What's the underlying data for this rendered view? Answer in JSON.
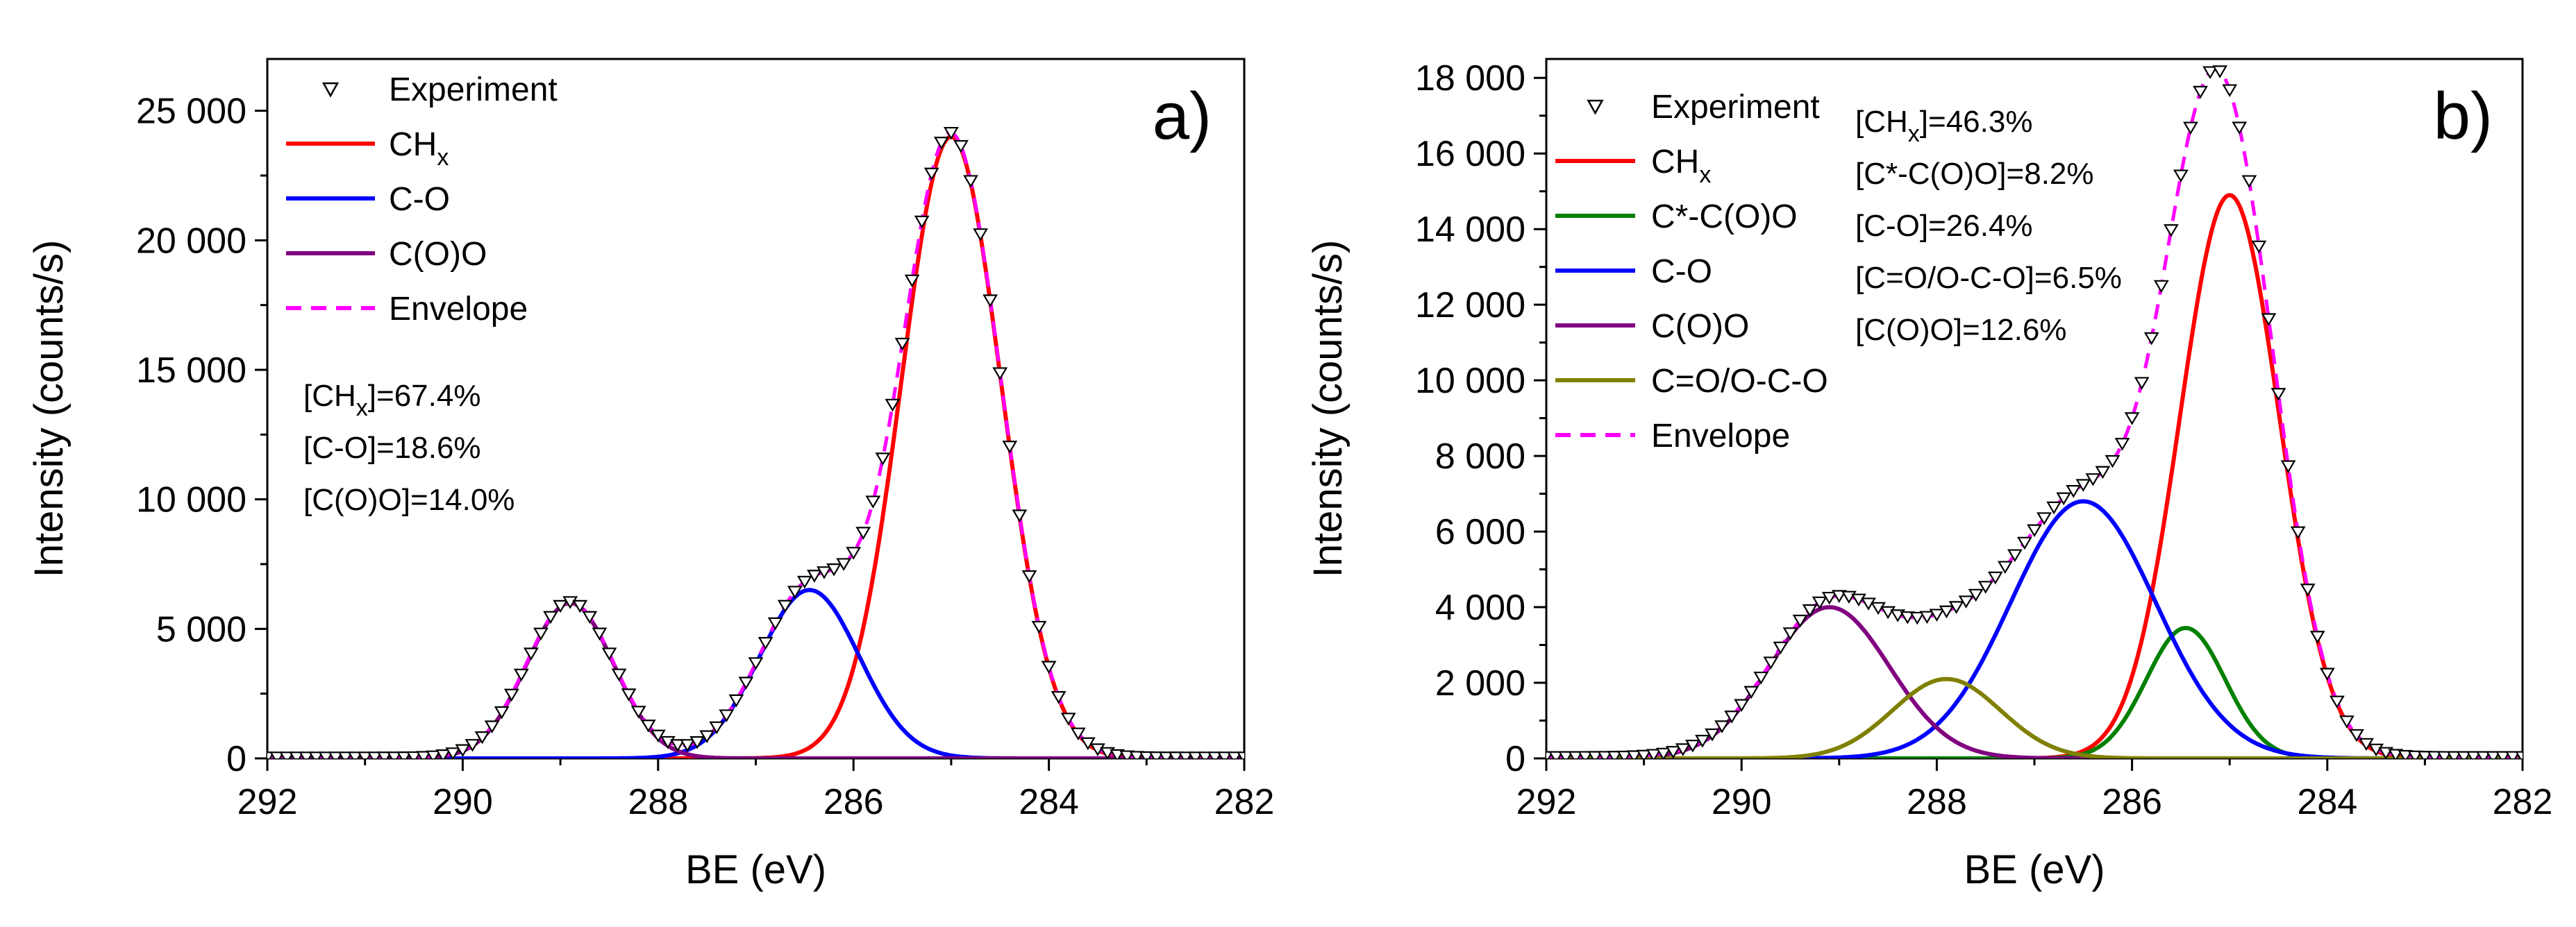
{
  "chart_data": [
    {
      "type": "line",
      "panel_label": "a)",
      "xlabel": "BE (eV)",
      "ylabel": "Intensity (counts/s)",
      "xlim": [
        292,
        282
      ],
      "ylim": [
        0,
        27000
      ],
      "x_reversed": true,
      "xticks": [
        292,
        290,
        288,
        286,
        284,
        282
      ],
      "xtick_labels": [
        "292",
        "290",
        "288",
        "286",
        "284",
        "282"
      ],
      "yticks": [
        0,
        5000,
        10000,
        15000,
        20000,
        25000
      ],
      "ytick_labels": [
        "0",
        "5 000",
        "10 000",
        "15 000",
        "20 000",
        "25 000"
      ],
      "legend_position": "top-left",
      "legend": [
        {
          "key": "experiment",
          "label": "Experiment",
          "style": "triangle-down-marker",
          "color": "#000000"
        },
        {
          "key": "chx",
          "label": "CH",
          "sub": "x",
          "style": "solid",
          "color": "#ff0000"
        },
        {
          "key": "co",
          "label": "C-O",
          "style": "solid",
          "color": "#0000ff"
        },
        {
          "key": "coo",
          "label": "C(O)O",
          "style": "solid",
          "color": "#800080"
        },
        {
          "key": "envelope",
          "label": "Envelope",
          "style": "dashed",
          "color": "#ff00ff"
        }
      ],
      "components": [
        {
          "key": "chx",
          "center": 285.0,
          "amplitude": 24000,
          "fwhm": 1.2
        },
        {
          "key": "co",
          "center": 286.45,
          "amplitude": 6500,
          "fwhm": 1.2
        },
        {
          "key": "coo",
          "center": 288.9,
          "amplitude": 6000,
          "fwhm": 1.05
        }
      ],
      "annotations": [
        {
          "pre": "[CH",
          "sub": "x",
          "post": "]=67.4%"
        },
        {
          "pre": "[C-O]=18.6%"
        },
        {
          "pre": "[C(O)O]=14.0%"
        }
      ]
    },
    {
      "type": "line",
      "panel_label": "b)",
      "xlabel": "BE (eV)",
      "ylabel": "Intensity (counts/s)",
      "xlim": [
        292,
        282
      ],
      "ylim": [
        0,
        18500
      ],
      "x_reversed": true,
      "xticks": [
        292,
        290,
        288,
        286,
        284,
        282
      ],
      "xtick_labels": [
        "292",
        "290",
        "288",
        "286",
        "284",
        "282"
      ],
      "yticks": [
        0,
        2000,
        4000,
        6000,
        8000,
        10000,
        12000,
        14000,
        16000,
        18000
      ],
      "ytick_labels": [
        "0",
        "2 000",
        "4 000",
        "6 000",
        "8 000",
        "10 000",
        "12 000",
        "14 000",
        "16 000",
        "18 000"
      ],
      "legend_position": "top-left",
      "legend": [
        {
          "key": "experiment",
          "label": "Experiment",
          "style": "triangle-down-marker",
          "color": "#000000"
        },
        {
          "key": "chx",
          "label": "CH",
          "sub": "x",
          "style": "solid",
          "color": "#ff0000"
        },
        {
          "key": "ccoo",
          "label": "C*-C(O)O",
          "style": "solid",
          "color": "#008000"
        },
        {
          "key": "co",
          "label": "C-O",
          "style": "solid",
          "color": "#0000ff"
        },
        {
          "key": "coo",
          "label": "C(O)O",
          "style": "solid",
          "color": "#800080"
        },
        {
          "key": "coco",
          "label": "C=O/O-C-O",
          "style": "solid",
          "color": "#808000"
        },
        {
          "key": "envelope",
          "label": "Envelope",
          "style": "dashed",
          "color": "#ff00ff"
        }
      ],
      "components": [
        {
          "key": "chx",
          "center": 285.0,
          "amplitude": 14900,
          "fwhm": 1.2
        },
        {
          "key": "ccoo",
          "center": 285.45,
          "amplitude": 3450,
          "fwhm": 0.95
        },
        {
          "key": "co",
          "center": 286.5,
          "amplitude": 6800,
          "fwhm": 1.75
        },
        {
          "key": "coo",
          "center": 289.1,
          "amplitude": 4000,
          "fwhm": 1.45
        },
        {
          "key": "coco",
          "center": 287.9,
          "amplitude": 2100,
          "fwhm": 1.3
        }
      ],
      "annotations": [
        {
          "pre": "[CH",
          "sub": "x",
          "post": "]=46.3%"
        },
        {
          "pre": "[C*-C(O)O]=8.2%"
        },
        {
          "pre": "[C-O]=26.4%"
        },
        {
          "pre": "[C=O/O-C-O]=6.5%"
        },
        {
          "pre": "[C(O)O]=12.6%"
        }
      ]
    }
  ]
}
